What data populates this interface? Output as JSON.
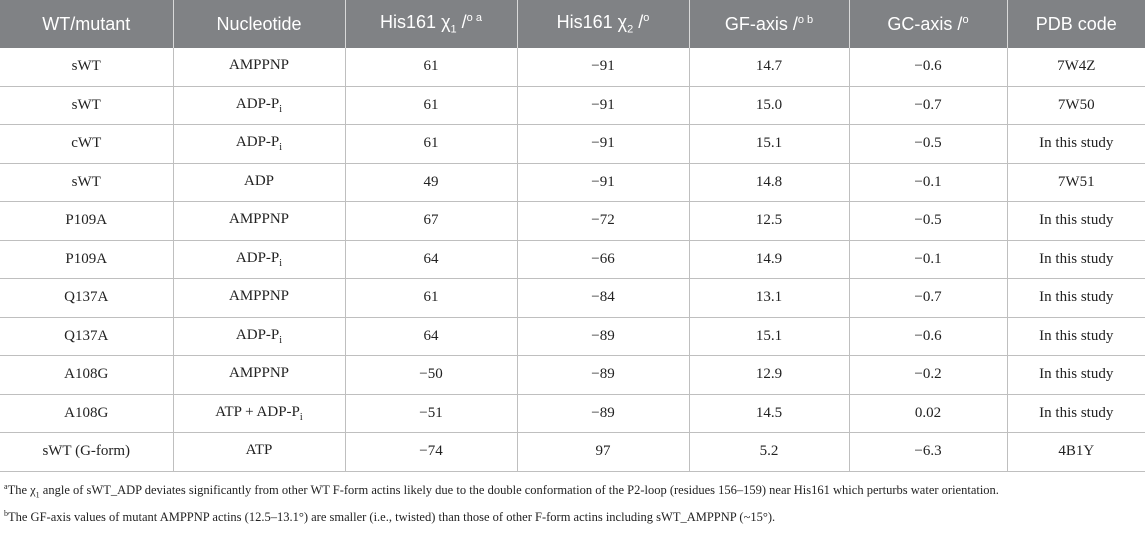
{
  "header": {
    "c0": "WT/mutant",
    "c1": "Nucleotide",
    "c2_main": "His161 χ",
    "c2_sub": "1",
    "c2_unit": " /",
    "c2_sup": "o a",
    "c3_main": "His161 χ",
    "c3_sub": "2",
    "c3_unit": " /",
    "c3_sup": "o",
    "c4_main": "GF-axis /",
    "c4_sup": "o b",
    "c5_main": "GC-axis /",
    "c5_sup": "o",
    "c6": "PDB code"
  },
  "rows": [
    {
      "wt": "sWT",
      "nuc": "AMPPNP",
      "nuc_sub": "",
      "chi1": "61",
      "chi2": "−91",
      "gf": "14.7",
      "gc": "−0.6",
      "pdb": "7W4Z"
    },
    {
      "wt": "sWT",
      "nuc": "ADP-P",
      "nuc_sub": "i",
      "chi1": "61",
      "chi2": "−91",
      "gf": "15.0",
      "gc": "−0.7",
      "pdb": "7W50"
    },
    {
      "wt": "cWT",
      "nuc": "ADP-P",
      "nuc_sub": "i",
      "chi1": "61",
      "chi2": "−91",
      "gf": "15.1",
      "gc": "−0.5",
      "pdb": "In this study"
    },
    {
      "wt": "sWT",
      "nuc": "ADP",
      "nuc_sub": "",
      "chi1": "49",
      "chi2": "−91",
      "gf": "14.8",
      "gc": "−0.1",
      "pdb": "7W51"
    },
    {
      "wt": "P109A",
      "nuc": "AMPPNP",
      "nuc_sub": "",
      "chi1": "67",
      "chi2": "−72",
      "gf": "12.5",
      "gc": "−0.5",
      "pdb": "In this study"
    },
    {
      "wt": "P109A",
      "nuc": "ADP-P",
      "nuc_sub": "i",
      "chi1": "64",
      "chi2": "−66",
      "gf": "14.9",
      "gc": "−0.1",
      "pdb": "In this study"
    },
    {
      "wt": "Q137A",
      "nuc": "AMPPNP",
      "nuc_sub": "",
      "chi1": "61",
      "chi2": "−84",
      "gf": "13.1",
      "gc": "−0.7",
      "pdb": "In this study"
    },
    {
      "wt": "Q137A",
      "nuc": "ADP-P",
      "nuc_sub": "i",
      "chi1": "64",
      "chi2": "−89",
      "gf": "15.1",
      "gc": "−0.6",
      "pdb": "In this study"
    },
    {
      "wt": "A108G",
      "nuc": "AMPPNP",
      "nuc_sub": "",
      "chi1": "−50",
      "chi2": "−89",
      "gf": "12.9",
      "gc": "−0.2",
      "pdb": "In this study"
    },
    {
      "wt": "A108G",
      "nuc": "ATP + ADP-P",
      "nuc_sub": "i",
      "chi1": "−51",
      "chi2": "−89",
      "gf": "14.5",
      "gc": "0.02",
      "pdb": "In this study"
    },
    {
      "wt": "sWT (G-form)",
      "nuc": "ATP",
      "nuc_sub": "",
      "chi1": "−74",
      "chi2": "97",
      "gf": "5.2",
      "gc": "−6.3",
      "pdb": "4B1Y"
    }
  ],
  "footnotes": {
    "a_mark": "a",
    "a_pre": "The χ",
    "a_sub": "1",
    "a_post": " angle of sWT_ADP deviates significantly from other WT F-form actins likely due to the double conformation of the P2-loop (residues 156–159) near His161 which perturbs water orientation.",
    "b_mark": "b",
    "b_text": "The GF-axis values of mutant AMPPNP actins (12.5–13.1°) are smaller (i.e., twisted) than those of other F-form actins including sWT_AMPPNP (~15°)."
  }
}
